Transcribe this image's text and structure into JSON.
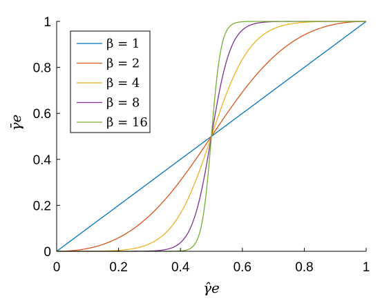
{
  "chart_data": {
    "type": "line",
    "x_formula": "x in [0,1]",
    "curve": "y = x^b / (x^b + (1-x)^b)",
    "xlabel": "γ̂e",
    "ylabel": "γ̄e",
    "xlim": [
      0,
      1
    ],
    "ylim": [
      0,
      1
    ],
    "x_ticks": [
      "0",
      "0.2",
      "0.4",
      "0.6",
      "0.8",
      "1"
    ],
    "y_ticks": [
      "0",
      "0.2",
      "0.4",
      "0.6",
      "0.8",
      "1"
    ],
    "grid": false,
    "legend_position": "top-left",
    "series": [
      {
        "name": "β = 1",
        "beta": 1,
        "color": "#0072BD"
      },
      {
        "name": "β = 2",
        "beta": 2,
        "color": "#D95319"
      },
      {
        "name": "β = 4",
        "beta": 4,
        "color": "#EDB120"
      },
      {
        "name": "β = 8",
        "beta": 8,
        "color": "#7E2F8E"
      },
      {
        "name": "β = 16",
        "beta": 16,
        "color": "#77AC30"
      }
    ]
  }
}
